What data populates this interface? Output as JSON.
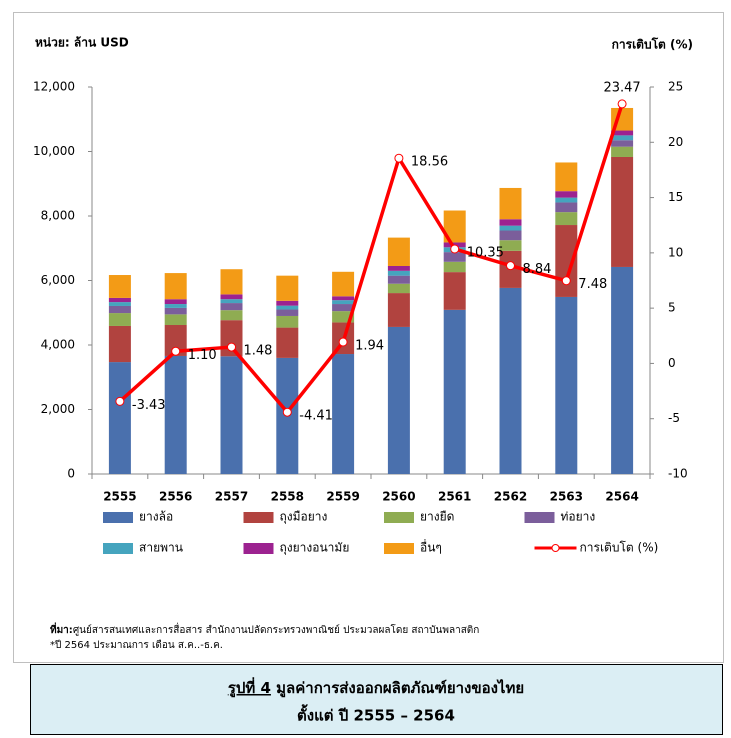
{
  "chart_data": {
    "type": "bar",
    "stacked": true,
    "ylabel": "หน่วย: ล้าน USD",
    "y2label": "การเติบโต (%)",
    "categories": [
      "2555",
      "2556",
      "2557",
      "2558",
      "2559",
      "2560",
      "2561",
      "2562",
      "2563",
      "2564"
    ],
    "series": [
      {
        "name": "ยางล้อ",
        "color": "#4a70ad",
        "values": [
          3470,
          3660,
          3650,
          3600,
          3720,
          4560,
          5090,
          5770,
          5490,
          6420
        ]
      },
      {
        "name": "ถุงมือยาง",
        "color": "#b1433f",
        "values": [
          1120,
          960,
          1120,
          940,
          980,
          1050,
          1170,
          1150,
          2230,
          3410
        ]
      },
      {
        "name": "ยางยืด",
        "color": "#8fac52",
        "values": [
          400,
          330,
          310,
          360,
          350,
          290,
          320,
          330,
          400,
          320
        ]
      },
      {
        "name": "ท่อยาง",
        "color": "#7b5e9b",
        "values": [
          220,
          200,
          220,
          200,
          220,
          250,
          300,
          300,
          300,
          200
        ]
      },
      {
        "name": "สายพาน",
        "color": "#45a4be",
        "values": [
          120,
          120,
          120,
          120,
          120,
          150,
          150,
          150,
          150,
          150
        ]
      },
      {
        "name": "ถุงยางอนามัย",
        "color": "#9c2290",
        "values": [
          130,
          150,
          150,
          150,
          120,
          150,
          150,
          200,
          200,
          150
        ]
      },
      {
        "name": "อื่นๆ",
        "color": "#f39b16",
        "values": [
          710,
          810,
          780,
          780,
          760,
          880,
          990,
          970,
          890,
          700
        ]
      },
      {
        "name": "การเติบโต (%)",
        "type": "line",
        "axis": "y2",
        "color": "#ff0000",
        "values": [
          -3.43,
          1.1,
          1.48,
          -4.41,
          1.94,
          18.56,
          10.35,
          8.84,
          7.48,
          23.47
        ],
        "value_labels": [
          "-3.43",
          "1.10",
          "1.48",
          "-4.41",
          "1.94",
          "18.56",
          "10.35",
          "8.84",
          "7.48",
          "23.47"
        ]
      }
    ],
    "ylim": [
      0,
      12000
    ],
    "yticks": [
      0,
      {
        "value": 2000,
        "label": "2,000"
      },
      {
        "value": 4000,
        "label": "4,000"
      },
      {
        "value": 6000,
        "label": "6,000"
      },
      {
        "value": 8000,
        "label": "8,000"
      },
      {
        "value": 10000,
        "label": "10,000"
      },
      {
        "value": 12000,
        "label": "12,000"
      }
    ],
    "y2lim": [
      -10,
      25
    ],
    "y2ticks": [
      -10,
      -5,
      0,
      5,
      10,
      15,
      20,
      25
    ],
    "grid": false,
    "legend": "bottom",
    "source_label": "ที่มา:",
    "source": "ศูนย์สารสนเทศและการสื่อสาร  สำนักงานปลัดกระทรวงพาณิชย์     ประมวลผลโดย  สถาบันพลาสติก",
    "note": "*ปี 2564 ประมาณการ เดือน ส.ค..-ธ.ค.",
    "caption": {
      "figure": "รูปที่ 4",
      "title": " มูลค่าการส่งออกผลิตภัณฑ์ยางของไทย",
      "subtitle": "ตั้งแต่ ปี 2555 – 2564"
    }
  }
}
